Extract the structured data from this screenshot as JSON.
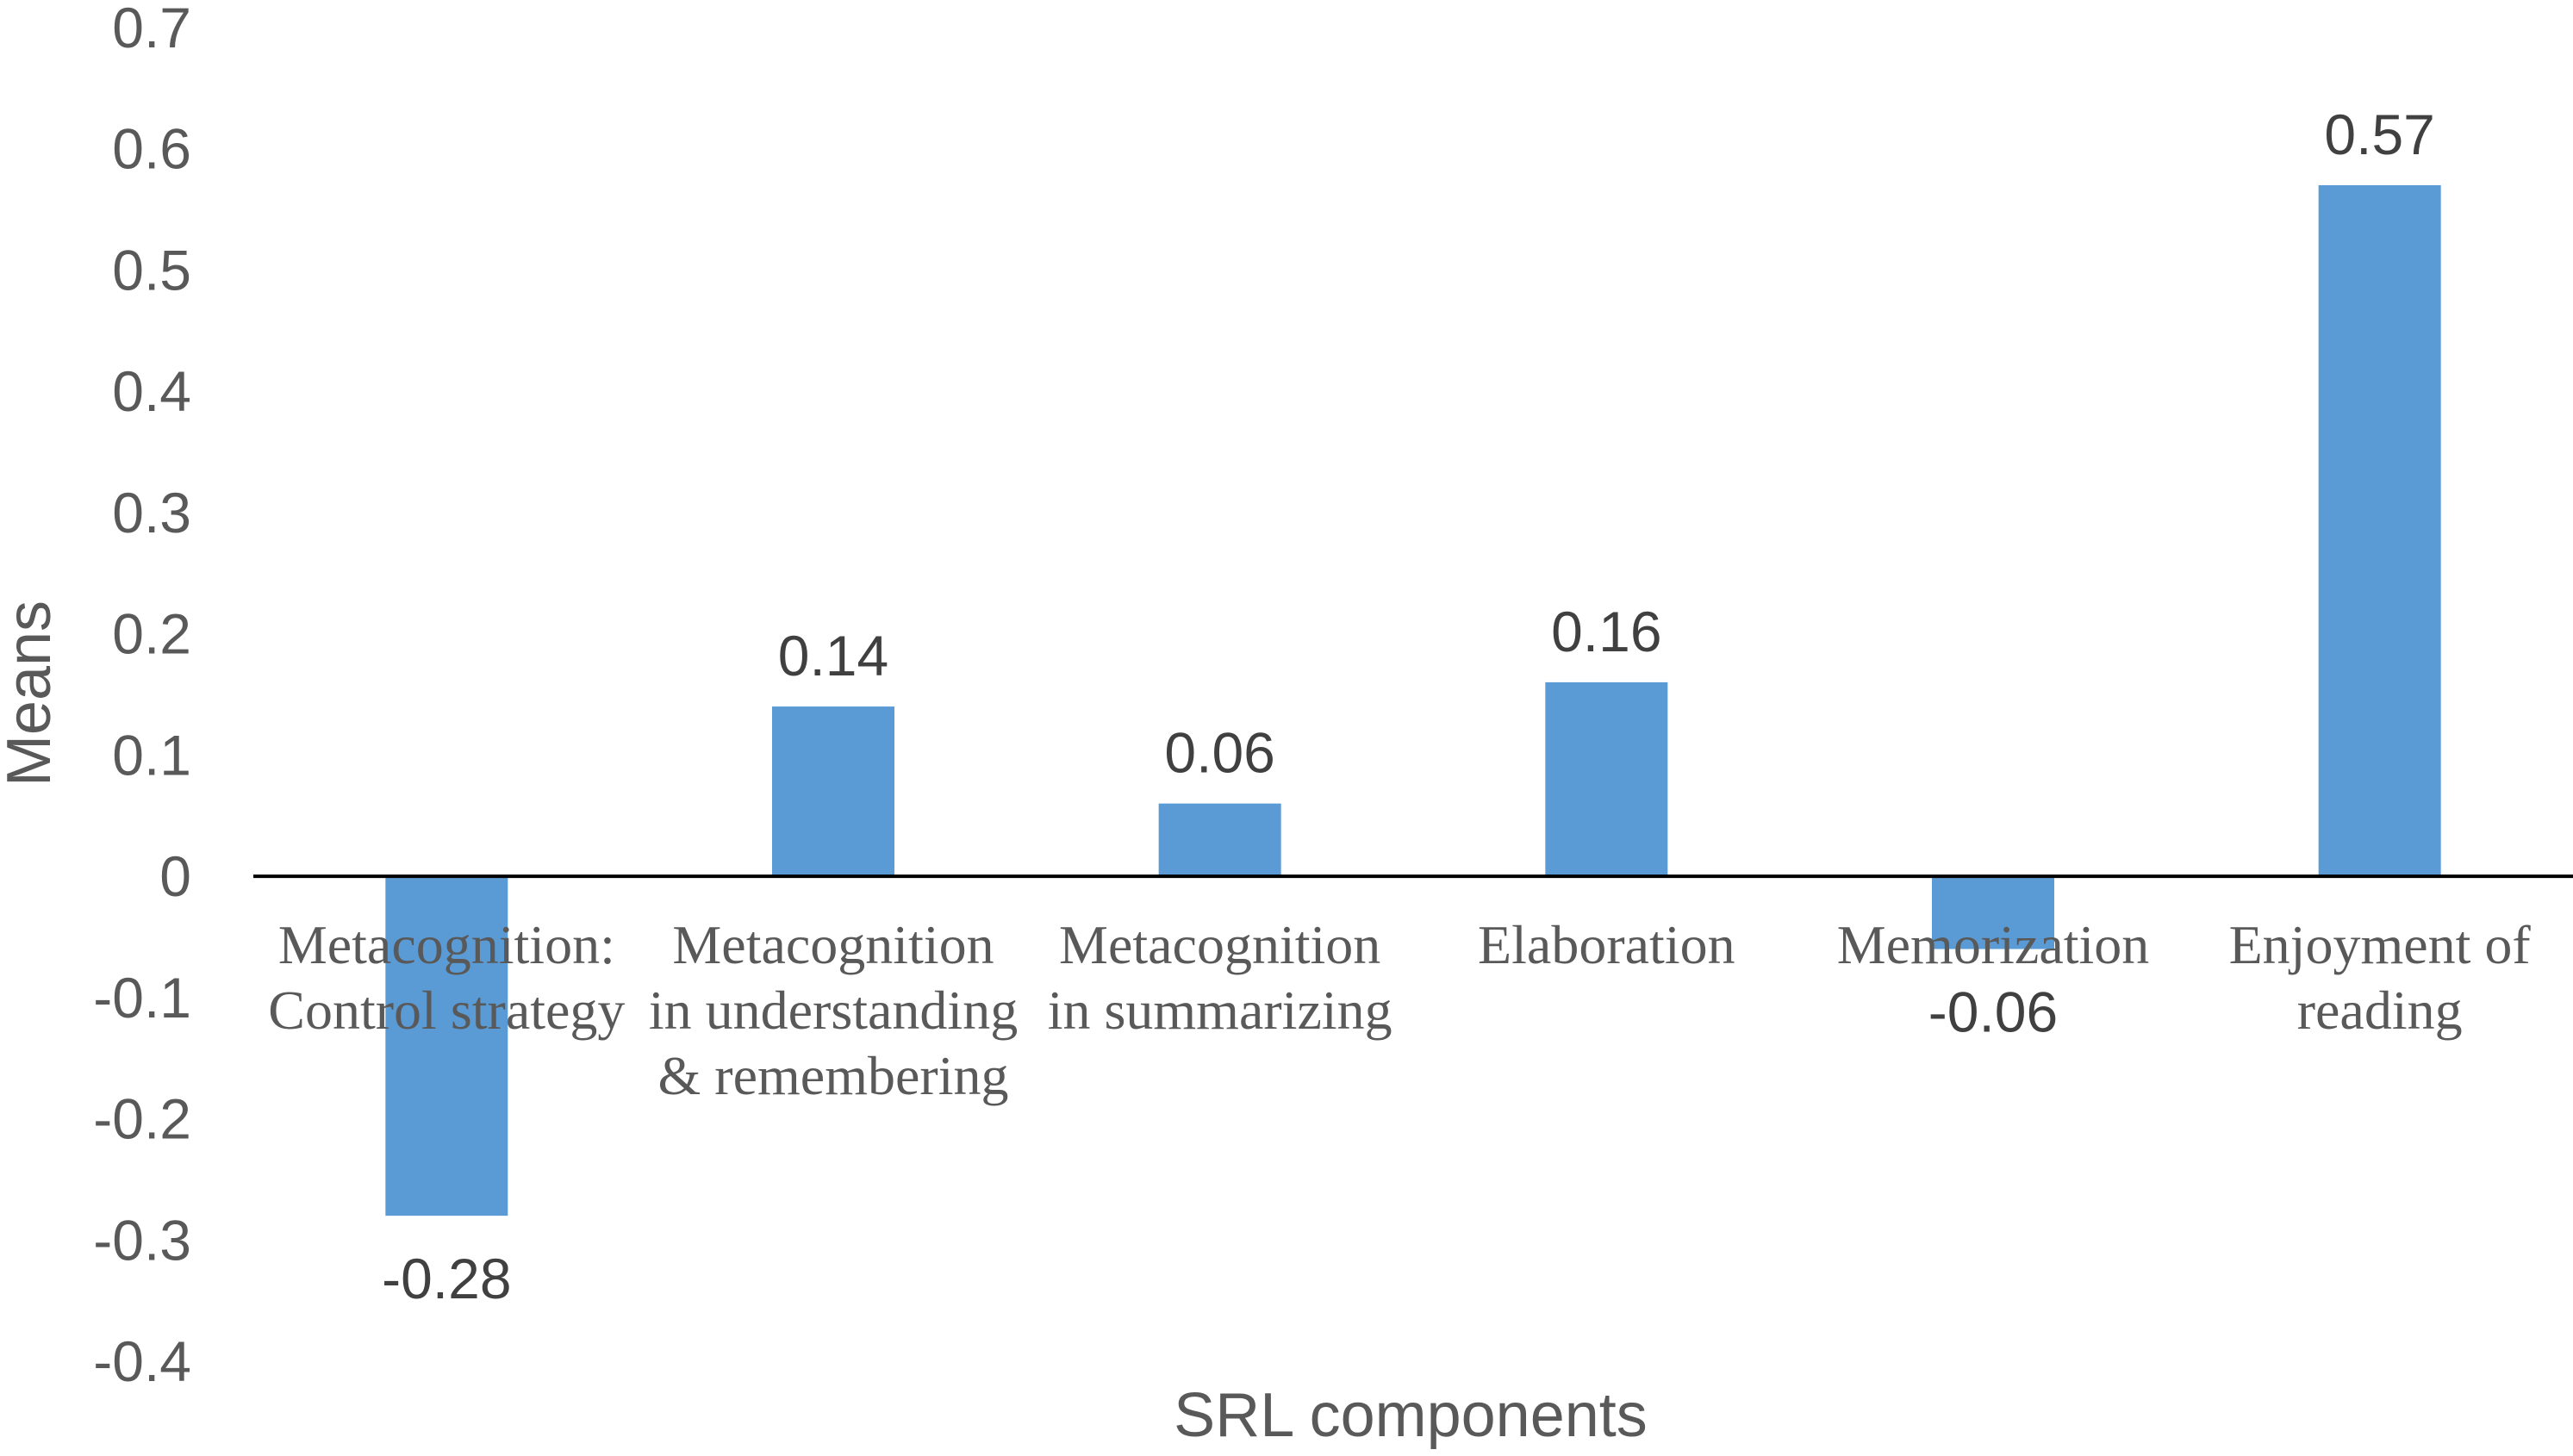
{
  "chart_data": {
    "type": "bar",
    "categories": [
      [
        "Metacognition:",
        "Control strategy"
      ],
      [
        "Metacognition",
        "in understanding",
        "& remembering"
      ],
      [
        "Metacognition",
        "in summarizing"
      ],
      [
        "Elaboration"
      ],
      [
        "Memorization"
      ],
      [
        "Enjoyment of",
        "reading"
      ]
    ],
    "values": [
      -0.28,
      0.14,
      0.06,
      0.16,
      -0.06,
      0.57
    ],
    "data_labels": [
      "-0.28",
      "0.14",
      "0.06",
      "0.16",
      "-0.06",
      "0.57"
    ],
    "xlabel": "SRL components",
    "ylabel": "Means",
    "ylim": [
      -0.4,
      0.7
    ],
    "yticks": [
      0.7,
      0.6,
      0.5,
      0.4,
      0.3,
      0.2,
      0.1,
      0,
      -0.1,
      -0.2,
      -0.3,
      -0.4
    ],
    "ytick_labels": [
      "0.7",
      "0.6",
      "0.5",
      "0.4",
      "0.3",
      "0.2",
      "0.1",
      "0",
      "-0.1",
      "-0.2",
      "-0.3",
      "-0.4"
    ],
    "grid": false,
    "legend": "none",
    "bar_color": "#5B9BD5",
    "axis_color": "#000000"
  }
}
